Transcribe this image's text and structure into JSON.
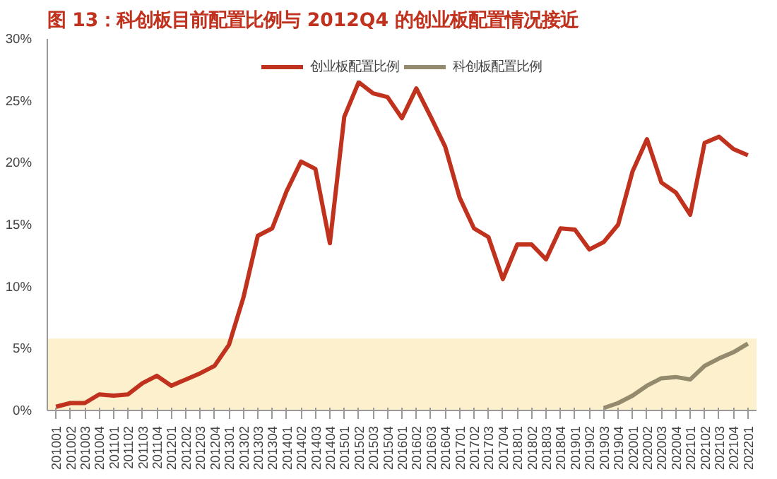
{
  "chart_data": {
    "type": "line",
    "title": "图 13：科创板目前配置比例与 2012Q4 的创业板配置情况接近",
    "categories": [
      "201001",
      "201002",
      "201003",
      "201004",
      "201101",
      "201102",
      "201103",
      "201104",
      "201201",
      "201202",
      "201203",
      "201204",
      "201301",
      "201302",
      "201303",
      "201304",
      "201401",
      "201402",
      "201403",
      "201404",
      "201501",
      "201502",
      "201503",
      "201504",
      "201601",
      "201602",
      "201603",
      "201604",
      "201701",
      "201702",
      "201703",
      "201704",
      "201801",
      "201802",
      "201803",
      "201804",
      "201901",
      "201902",
      "201903",
      "201904",
      "202001",
      "202002",
      "202003",
      "202004",
      "202101",
      "202102",
      "202103",
      "202104",
      "202201"
    ],
    "series": [
      {
        "name": "创业板配置比例",
        "color": "#c0321e",
        "values": [
          0.3,
          0.6,
          0.6,
          1.3,
          1.2,
          1.3,
          2.2,
          2.8,
          2.0,
          2.5,
          3.0,
          3.6,
          5.3,
          9.1,
          14.1,
          14.7,
          17.7,
          20.1,
          19.5,
          13.5,
          23.7,
          26.5,
          25.6,
          25.3,
          23.6,
          26.0,
          23.7,
          21.3,
          17.2,
          14.7,
          14.0,
          10.6,
          13.4,
          13.4,
          12.2,
          14.7,
          14.6,
          13.0,
          13.6,
          15.0,
          19.3,
          21.9,
          18.4,
          17.6,
          15.8,
          21.6,
          22.1,
          21.1,
          20.6
        ]
      },
      {
        "name": "科创板配置比例",
        "color": "#948a6e",
        "values": [
          null,
          null,
          null,
          null,
          null,
          null,
          null,
          null,
          null,
          null,
          null,
          null,
          null,
          null,
          null,
          null,
          null,
          null,
          null,
          null,
          null,
          null,
          null,
          null,
          null,
          null,
          null,
          null,
          null,
          null,
          null,
          null,
          null,
          null,
          null,
          null,
          null,
          null,
          0.2,
          0.6,
          1.2,
          2.0,
          2.6,
          2.7,
          2.5,
          3.6,
          4.2,
          4.7,
          5.4
        ]
      }
    ],
    "ylim": [
      0,
      30
    ],
    "yticks": [
      {
        "value": 0,
        "label": "0%"
      },
      {
        "value": 5,
        "label": "5%"
      },
      {
        "value": 10,
        "label": "10%"
      },
      {
        "value": 15,
        "label": "15%"
      },
      {
        "value": 20,
        "label": "20%"
      },
      {
        "value": 25,
        "label": "25%"
      },
      {
        "value": 30,
        "label": "30%"
      }
    ],
    "bands": [
      {
        "axis": "y",
        "from": 0,
        "to": 5.8,
        "color": "#fdf0cc"
      }
    ],
    "grid": false,
    "legend": "top",
    "line_style": "solid",
    "marker": "none"
  }
}
